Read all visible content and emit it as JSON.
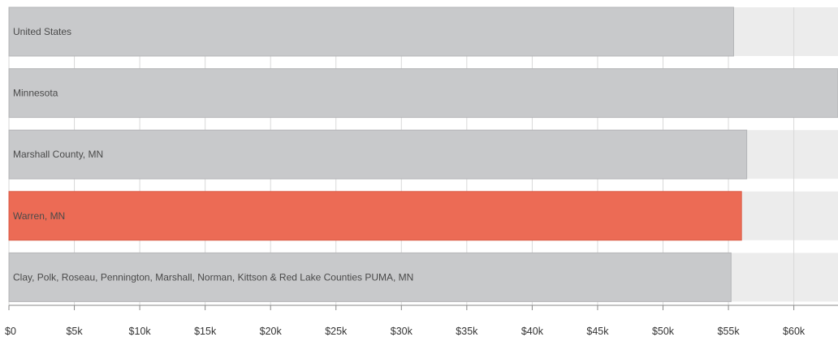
{
  "chart_data": {
    "type": "bar",
    "orientation": "horizontal",
    "categories": [
      "United States",
      "Minnesota",
      "Marshall County, MN",
      "Warren, MN",
      "Clay, Polk, Roseau, Pennington, Marshall, Norman, Kittson & Red Lake Counties PUMA, MN"
    ],
    "values": [
      55400,
      66000,
      56400,
      56000,
      55200
    ],
    "highlight_index": 3,
    "xlim": [
      0,
      63500
    ],
    "x_ticks": [
      0,
      5000,
      10000,
      15000,
      20000,
      25000,
      30000,
      35000,
      40000,
      45000,
      50000,
      55000,
      60000
    ],
    "x_tick_labels": [
      "$0",
      "$5k",
      "$10k",
      "$15k",
      "$20k",
      "$25k",
      "$30k",
      "$35k",
      "$40k",
      "$45k",
      "$50k",
      "$55k",
      "$60k"
    ],
    "grid": true,
    "colors": {
      "bar": "#c8c9cb",
      "bar_stroke": "#b4b5b7",
      "highlight": "#ec6b55",
      "highlight_stroke": "#d95a45",
      "band": "#ececec",
      "grid": "#d9d9d9",
      "axis": "#888888"
    }
  }
}
